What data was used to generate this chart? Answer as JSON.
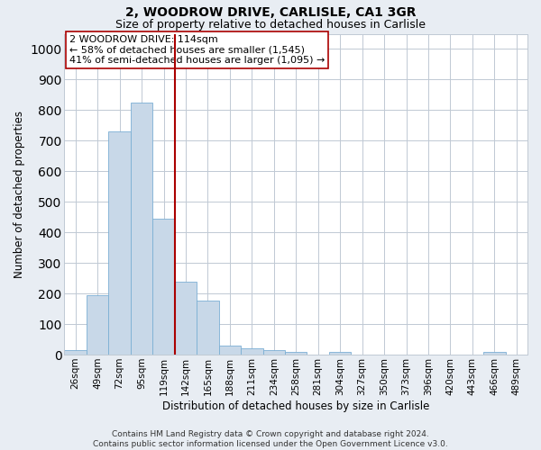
{
  "title": "2, WOODROW DRIVE, CARLISLE, CA1 3GR",
  "subtitle": "Size of property relative to detached houses in Carlisle",
  "xlabel": "Distribution of detached houses by size in Carlisle",
  "ylabel": "Number of detached properties",
  "categories": [
    "26sqm",
    "49sqm",
    "72sqm",
    "95sqm",
    "119sqm",
    "142sqm",
    "165sqm",
    "188sqm",
    "211sqm",
    "234sqm",
    "258sqm",
    "281sqm",
    "304sqm",
    "327sqm",
    "350sqm",
    "373sqm",
    "396sqm",
    "420sqm",
    "443sqm",
    "466sqm",
    "489sqm"
  ],
  "values": [
    15,
    195,
    730,
    825,
    445,
    240,
    178,
    30,
    20,
    15,
    8,
    0,
    8,
    0,
    0,
    0,
    0,
    0,
    0,
    8,
    0
  ],
  "bar_color": "#c8d8e8",
  "bar_edge_color": "#7bafd4",
  "vline_color": "#aa0000",
  "vline_bar_index": 4,
  "annotation_text": "2 WOODROW DRIVE: 114sqm\n← 58% of detached houses are smaller (1,545)\n41% of semi-detached houses are larger (1,095) →",
  "annotation_box_color": "#ffffff",
  "annotation_box_edge": "#aa0000",
  "ylim": [
    0,
    1050
  ],
  "yticks": [
    0,
    100,
    200,
    300,
    400,
    500,
    600,
    700,
    800,
    900,
    1000
  ],
  "bg_color": "#e8edf3",
  "plot_bg_color": "#ffffff",
  "grid_color": "#c0c9d4",
  "footer": "Contains HM Land Registry data © Crown copyright and database right 2024.\nContains public sector information licensed under the Open Government Licence v3.0.",
  "title_fontsize": 10,
  "subtitle_fontsize": 9,
  "xlabel_fontsize": 8.5,
  "ylabel_fontsize": 8.5,
  "tick_fontsize": 7.5,
  "annotation_fontsize": 8,
  "footer_fontsize": 6.5
}
